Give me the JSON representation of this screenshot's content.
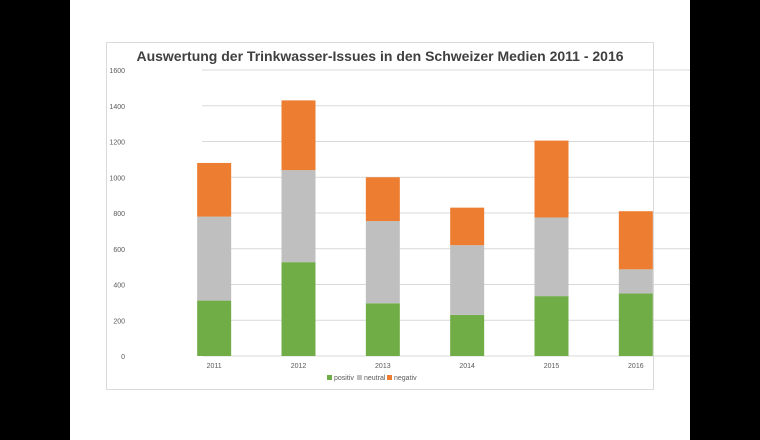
{
  "chart_data": {
    "type": "bar",
    "stacked": true,
    "title": "Auswertung der Trinkwasser-Issues in den Schweizer Medien 2011 - 2016",
    "xlabel": "",
    "ylabel": "",
    "categories": [
      "2011",
      "2012",
      "2013",
      "2014",
      "2015",
      "2016"
    ],
    "series": [
      {
        "name": "positiv",
        "color": "#70ad47",
        "values": [
          310,
          525,
          295,
          230,
          335,
          350
        ]
      },
      {
        "name": "neutral",
        "color": "#bfbfbf",
        "values": [
          470,
          515,
          460,
          390,
          440,
          135
        ]
      },
      {
        "name": "negativ",
        "color": "#ed7d31",
        "values": [
          300,
          390,
          245,
          210,
          430,
          325
        ]
      }
    ],
    "ylim": [
      0,
      1600
    ],
    "yticks": [
      0,
      200,
      400,
      600,
      800,
      1000,
      1200,
      1400,
      1600
    ],
    "grid": true,
    "legend": "bottom"
  }
}
